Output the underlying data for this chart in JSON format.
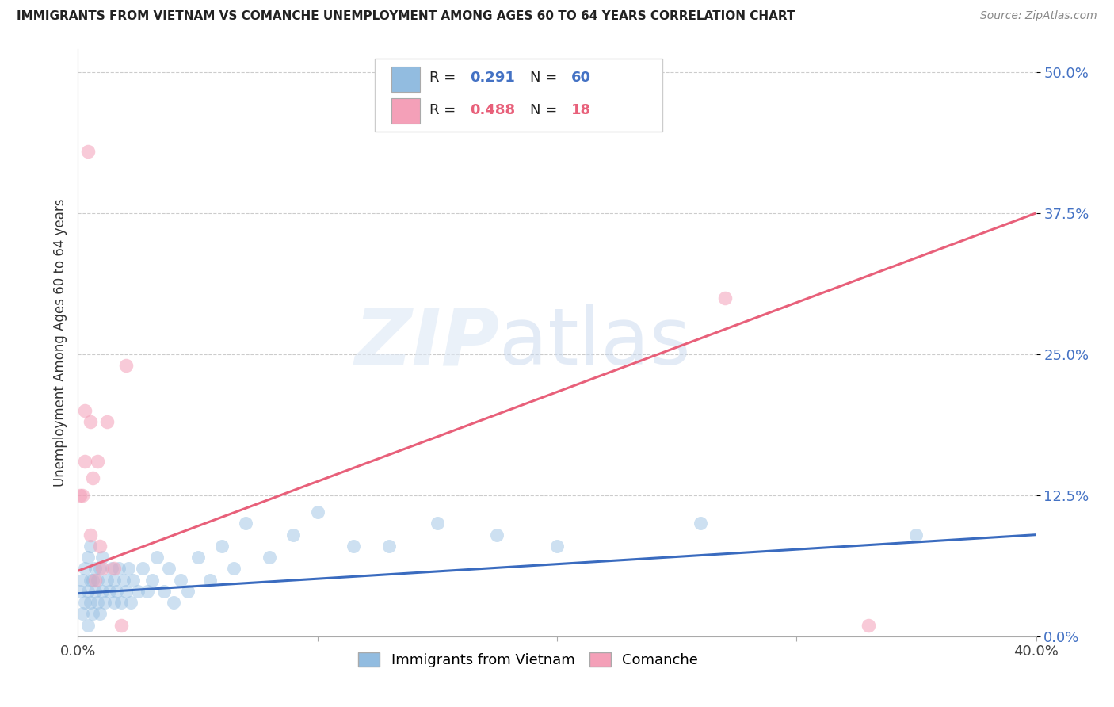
{
  "title": "IMMIGRANTS FROM VIETNAM VS COMANCHE UNEMPLOYMENT AMONG AGES 60 TO 64 YEARS CORRELATION CHART",
  "source": "Source: ZipAtlas.com",
  "ylabel": "Unemployment Among Ages 60 to 64 years",
  "ytick_labels": [
    "0.0%",
    "12.5%",
    "25.0%",
    "37.5%",
    "50.0%"
  ],
  "ytick_values": [
    0.0,
    0.125,
    0.25,
    0.375,
    0.5
  ],
  "xlim": [
    0.0,
    0.4
  ],
  "ylim": [
    0.0,
    0.52
  ],
  "legend1_R": "0.291",
  "legend1_N": "60",
  "legend2_R": "0.488",
  "legend2_N": "18",
  "blue_color": "#92bce0",
  "pink_color": "#f4a0b8",
  "blue_line_color": "#3a6bbf",
  "pink_line_color": "#e8607a",
  "vietnam_x": [
    0.001,
    0.002,
    0.002,
    0.003,
    0.003,
    0.004,
    0.004,
    0.004,
    0.005,
    0.005,
    0.005,
    0.006,
    0.006,
    0.007,
    0.007,
    0.008,
    0.008,
    0.009,
    0.009,
    0.01,
    0.01,
    0.011,
    0.012,
    0.013,
    0.014,
    0.015,
    0.015,
    0.016,
    0.017,
    0.018,
    0.019,
    0.02,
    0.021,
    0.022,
    0.023,
    0.025,
    0.027,
    0.029,
    0.031,
    0.033,
    0.036,
    0.038,
    0.04,
    0.043,
    0.046,
    0.05,
    0.055,
    0.06,
    0.065,
    0.07,
    0.08,
    0.09,
    0.1,
    0.115,
    0.13,
    0.15,
    0.175,
    0.2,
    0.26,
    0.35
  ],
  "vietnam_y": [
    0.04,
    0.02,
    0.05,
    0.03,
    0.06,
    0.01,
    0.04,
    0.07,
    0.03,
    0.05,
    0.08,
    0.02,
    0.05,
    0.04,
    0.06,
    0.03,
    0.05,
    0.02,
    0.06,
    0.04,
    0.07,
    0.03,
    0.05,
    0.04,
    0.06,
    0.03,
    0.05,
    0.04,
    0.06,
    0.03,
    0.05,
    0.04,
    0.06,
    0.03,
    0.05,
    0.04,
    0.06,
    0.04,
    0.05,
    0.07,
    0.04,
    0.06,
    0.03,
    0.05,
    0.04,
    0.07,
    0.05,
    0.08,
    0.06,
    0.1,
    0.07,
    0.09,
    0.11,
    0.08,
    0.08,
    0.1,
    0.09,
    0.08,
    0.1,
    0.09
  ],
  "comanche_x": [
    0.001,
    0.002,
    0.003,
    0.003,
    0.004,
    0.005,
    0.005,
    0.006,
    0.007,
    0.008,
    0.009,
    0.01,
    0.012,
    0.015,
    0.018,
    0.02,
    0.27,
    0.33
  ],
  "comanche_y": [
    0.125,
    0.125,
    0.2,
    0.155,
    0.43,
    0.19,
    0.09,
    0.14,
    0.05,
    0.155,
    0.08,
    0.06,
    0.19,
    0.06,
    0.01,
    0.24,
    0.3,
    0.01
  ],
  "pink_line_start_y": 0.058,
  "pink_line_end_y": 0.375,
  "blue_line_start_y": 0.038,
  "blue_line_end_y": 0.09
}
